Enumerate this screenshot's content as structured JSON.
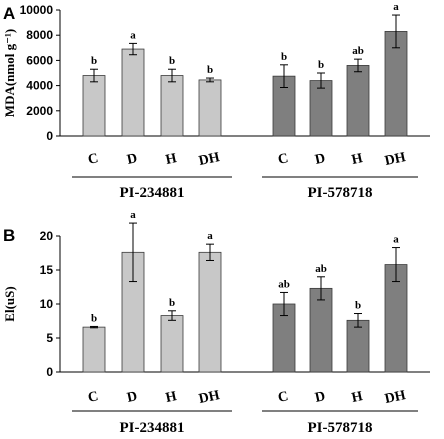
{
  "panel_labels": [
    "A",
    "B"
  ],
  "group_labels": [
    "PI-234881",
    "PI-578718"
  ],
  "colors": {
    "group1": "#c8c8c8",
    "group2": "#7f7f7f"
  },
  "chart_data": [
    {
      "type": "bar",
      "panel": "A",
      "ylabel": "MDA(nmol g⁻¹)",
      "ylim": [
        0,
        10000
      ],
      "yticks": [
        "0",
        "2000",
        "4000",
        "6000",
        "8000",
        "10000"
      ],
      "categories": [
        "C",
        "D",
        "H",
        "DH",
        "C",
        "D",
        "H",
        "DH"
      ],
      "groups": [
        "PI-234881",
        "PI-234881",
        "PI-234881",
        "PI-234881",
        "PI-578718",
        "PI-578718",
        "PI-578718",
        "PI-578718"
      ],
      "values": [
        4800,
        6900,
        4800,
        4450,
        4750,
        4400,
        5600,
        8300
      ],
      "errors": [
        500,
        450,
        500,
        150,
        900,
        600,
        500,
        1300
      ],
      "letters": [
        "b",
        "a",
        "b",
        "b",
        "b",
        "b",
        "ab",
        "a"
      ]
    },
    {
      "type": "bar",
      "panel": "B",
      "ylabel": "El(uS)",
      "ylim": [
        0,
        20
      ],
      "yticks": [
        "0",
        "5",
        "10",
        "15",
        "20"
      ],
      "categories": [
        "C",
        "D",
        "H",
        "DH",
        "C",
        "D",
        "H",
        "DH"
      ],
      "groups": [
        "PI-234881",
        "PI-234881",
        "PI-234881",
        "PI-234881",
        "PI-578718",
        "PI-578718",
        "PI-578718",
        "PI-578718"
      ],
      "values": [
        6.6,
        17.6,
        8.3,
        17.6,
        10,
        12.3,
        7.6,
        15.8
      ],
      "errors": [
        0.1,
        4.3,
        0.7,
        1.2,
        1.7,
        1.7,
        1.0,
        2.5
      ],
      "letters": [
        "b",
        "a",
        "b",
        "a",
        "ab",
        "ab",
        "b",
        "a"
      ]
    }
  ]
}
